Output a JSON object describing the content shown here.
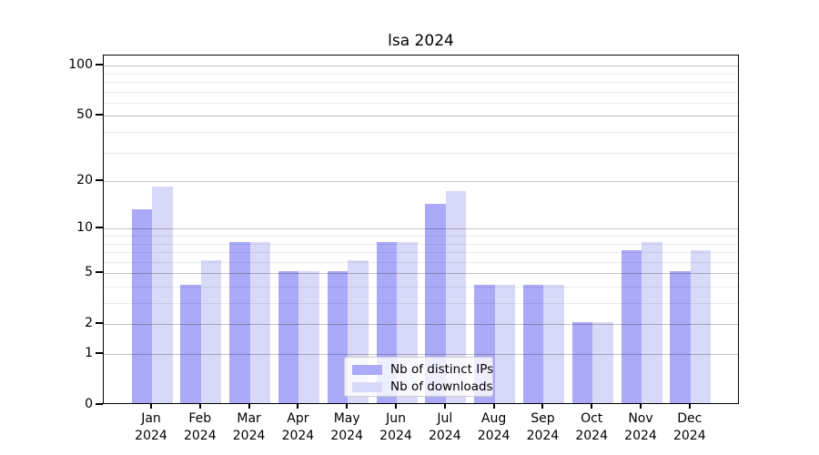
{
  "chart_data": {
    "type": "bar",
    "title": "lsa 2024",
    "categories": [
      "Jan",
      "Feb",
      "Mar",
      "Apr",
      "May",
      "Jun",
      "Jul",
      "Aug",
      "Sep",
      "Oct",
      "Nov",
      "Dec"
    ],
    "category_year": "2024",
    "series": [
      {
        "name": "Nb of distinct IPs",
        "color": "#aaaaf8",
        "values": [
          13,
          4,
          8,
          5,
          5,
          8,
          14,
          4,
          4,
          2,
          7,
          5
        ]
      },
      {
        "name": "Nb of downloads",
        "color": "#d8d8f9",
        "values": [
          18,
          6,
          8,
          5,
          6,
          8,
          17,
          4,
          4,
          2,
          8,
          7
        ]
      }
    ],
    "xlabel": "",
    "ylabel": "",
    "yscale": "log1p",
    "ylim": [
      0,
      115
    ],
    "yticks": [
      0,
      1,
      2,
      5,
      10,
      20,
      50,
      100
    ],
    "minor_yticks": [
      3,
      4,
      6,
      7,
      8,
      9,
      30,
      40,
      60,
      70,
      80,
      90
    ],
    "grid": "horizontal, drawn over bars",
    "legend_position": "lower center",
    "colors": {
      "bar_distinct_ips": "#aaaaf8",
      "bar_downloads": "#d8d8f9",
      "major_grid": "#c2c2c2",
      "minor_grid": "#ebebeb",
      "axis": "#000000",
      "text": "#000000",
      "background": "#ffffff"
    }
  }
}
